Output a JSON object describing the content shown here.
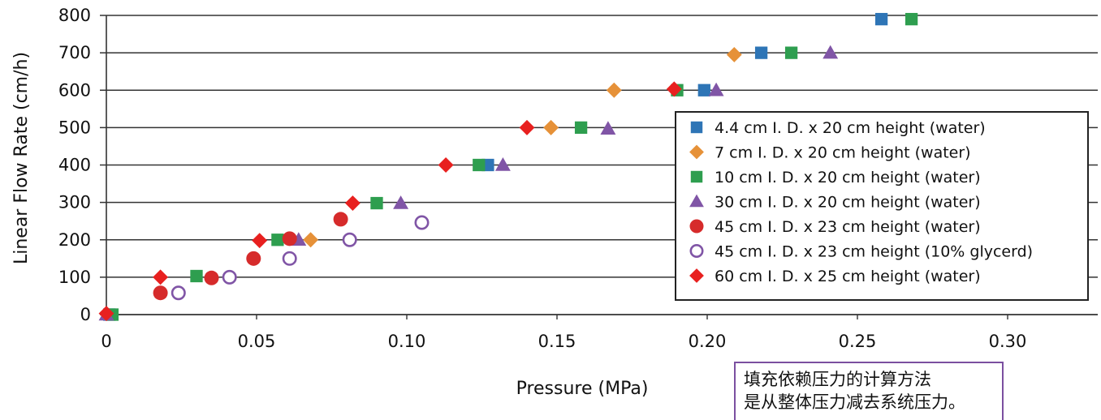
{
  "chart_data": {
    "type": "scatter",
    "xlabel": "Pressure (MPa)",
    "ylabel": "Linear Flow Rate (cm/h)",
    "xlim": [
      0,
      0.34
    ],
    "ylim": [
      0,
      800
    ],
    "x_ticks": [
      {
        "value": 0,
        "label": "0"
      },
      {
        "value": 0.05,
        "label": "0.05"
      },
      {
        "value": 0.1,
        "label": "0.10"
      },
      {
        "value": 0.15,
        "label": "0.15"
      },
      {
        "value": 0.2,
        "label": "0.20"
      },
      {
        "value": 0.25,
        "label": "0.25"
      },
      {
        "value": 0.3,
        "label": "0.30"
      }
    ],
    "y_ticks": [
      {
        "value": 0,
        "label": "0"
      },
      {
        "value": 100,
        "label": "100"
      },
      {
        "value": 200,
        "label": "200"
      },
      {
        "value": 300,
        "label": "300"
      },
      {
        "value": 400,
        "label": "400"
      },
      {
        "value": 500,
        "label": "500"
      },
      {
        "value": 600,
        "label": "600"
      },
      {
        "value": 700,
        "label": "700"
      },
      {
        "value": 800,
        "label": "800"
      }
    ],
    "grid": "horizontal",
    "legend_position": "right",
    "series": [
      {
        "name": "4.4 cm I. D. x 20 cm height (water)",
        "marker": "square",
        "color": "#2e75b6",
        "filled": true,
        "points": [
          [
            0.001,
            0
          ],
          [
            0.127,
            400
          ],
          [
            0.199,
            600
          ],
          [
            0.218,
            700
          ],
          [
            0.258,
            790
          ]
        ]
      },
      {
        "name": "  7 cm I. D. x 20 cm height (water)",
        "marker": "diamond",
        "color": "#e69138",
        "filled": true,
        "points": [
          [
            0.068,
            200
          ],
          [
            0.148,
            500
          ],
          [
            0.169,
            600
          ],
          [
            0.209,
            695
          ]
        ]
      },
      {
        "name": "10 cm I. D. x 20 cm height (water)",
        "marker": "square",
        "color": "#2e9e4f",
        "filled": true,
        "points": [
          [
            0.002,
            0
          ],
          [
            0.03,
            103
          ],
          [
            0.057,
            200
          ],
          [
            0.09,
            298
          ],
          [
            0.124,
            400
          ],
          [
            0.158,
            500
          ],
          [
            0.19,
            600
          ],
          [
            0.228,
            700
          ],
          [
            0.268,
            790
          ]
        ]
      },
      {
        "name": "30 cm I. D. x 20 cm height (water)",
        "marker": "triangle",
        "color": "#8055a6",
        "filled": true,
        "points": [
          [
            0.0,
            0
          ],
          [
            0.064,
            200
          ],
          [
            0.098,
            298
          ],
          [
            0.132,
            400
          ],
          [
            0.167,
            497
          ],
          [
            0.203,
            600
          ],
          [
            0.241,
            700
          ]
        ]
      },
      {
        "name": "45 cm I. D. x 23 cm height (water)",
        "marker": "circle",
        "color": "#d62b2b",
        "filled": true,
        "points": [
          [
            0.018,
            58
          ],
          [
            0.035,
            98
          ],
          [
            0.049,
            150
          ],
          [
            0.061,
            203
          ],
          [
            0.078,
            255
          ]
        ]
      },
      {
        "name": "45 cm I. D. x 23 cm height (10% glycerd)",
        "marker": "circle",
        "color": "#8055a6",
        "filled": false,
        "points": [
          [
            0.024,
            58
          ],
          [
            0.041,
            100
          ],
          [
            0.061,
            150
          ],
          [
            0.081,
            200
          ],
          [
            0.105,
            246
          ]
        ]
      },
      {
        "name": "60 cm I. D. x 25 cm height (water)",
        "marker": "diamond",
        "color": "#e8201f",
        "filled": true,
        "points": [
          [
            0.0,
            3
          ],
          [
            0.018,
            100
          ],
          [
            0.051,
            198
          ],
          [
            0.082,
            298
          ],
          [
            0.113,
            400
          ],
          [
            0.14,
            500
          ],
          [
            0.189,
            603
          ]
        ]
      }
    ]
  },
  "note": {
    "line1": "填充依赖压力的计算方法",
    "line2": "是从整体压力减去系统压力。"
  }
}
